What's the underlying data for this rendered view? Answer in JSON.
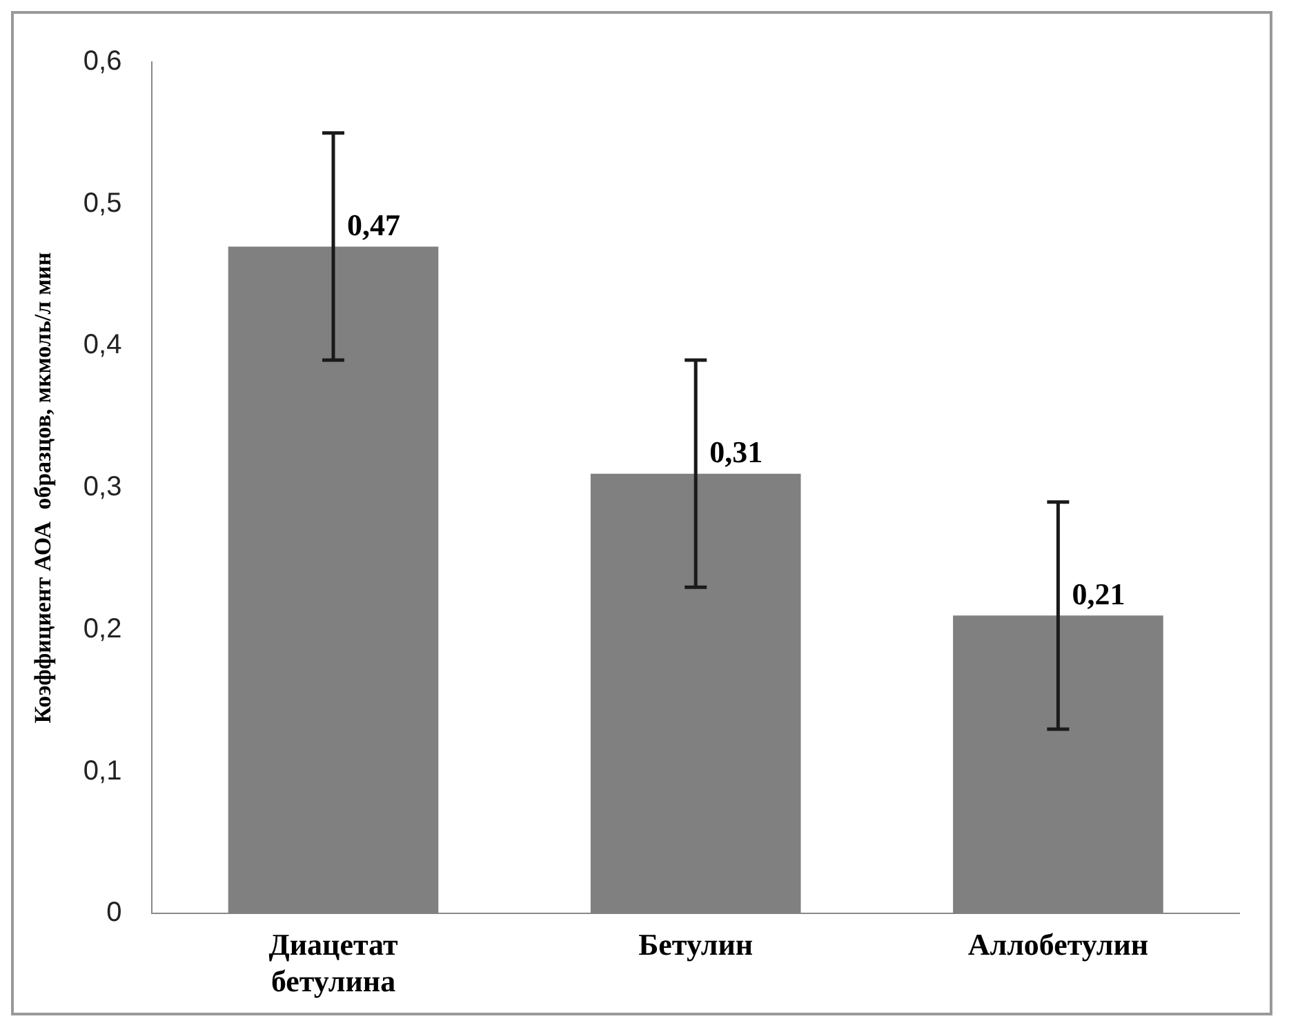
{
  "chart_data": {
    "type": "bar",
    "ylabel": "Коэффициент АОА  образцов, мкмоль/л мин",
    "categories": [
      "Диацетат бетулина",
      "Бетулин",
      "Аллобетулин"
    ],
    "values": [
      0.47,
      0.31,
      0.21
    ],
    "errors": [
      0.08,
      0.08,
      0.08
    ],
    "color": "#808080",
    "ylim": [
      0,
      0.6
    ],
    "yticks": [
      {
        "value": 0,
        "label": "0"
      },
      {
        "value": 0.1,
        "label": "0,1"
      },
      {
        "value": 0.2,
        "label": "0,2"
      },
      {
        "value": 0.3,
        "label": "0,3"
      },
      {
        "value": 0.4,
        "label": "0,4"
      },
      {
        "value": 0.5,
        "label": "0,5"
      },
      {
        "value": 0.6,
        "label": "0,6"
      }
    ],
    "value_labels": [
      "0,47",
      "0,31",
      "0,21"
    ],
    "grid": false,
    "legend": false
  }
}
